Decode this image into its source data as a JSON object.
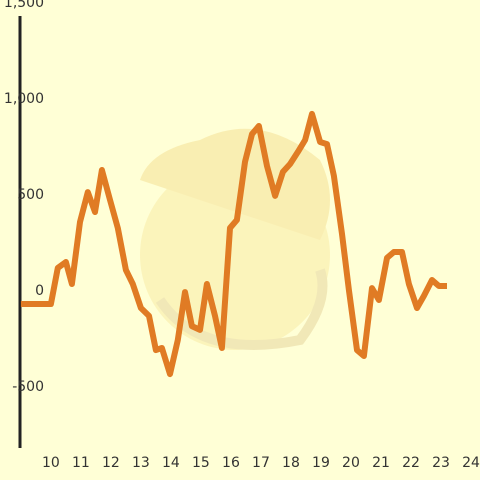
{
  "chart_data": {
    "type": "line",
    "x": [
      9,
      10,
      10.23,
      10.5,
      10.7,
      10.97,
      11.23,
      11.47,
      11.7,
      11.97,
      12.23,
      12.5,
      12.73,
      13,
      13.27,
      13.5,
      13.7,
      13.97,
      14.23,
      14.47,
      14.7,
      14.97,
      15.2,
      15.47,
      15.7,
      15.97,
      16.2,
      16.47,
      16.7,
      16.93,
      17.2,
      17.47,
      17.73,
      17.97,
      18.23,
      18.47,
      18.7,
      18.97,
      19.2,
      19.43,
      19.7,
      19.93,
      20.2,
      20.43,
      20.7,
      20.93,
      21.2,
      21.43,
      21.7,
      21.93,
      22.2,
      22.43,
      22.7,
      22.93,
      23.2
    ],
    "values": [
      0,
      0,
      188,
      219,
      104,
      427,
      583,
      479,
      698,
      542,
      396,
      177,
      104,
      -21,
      -62,
      -240,
      -229,
      -365,
      -188,
      62,
      -115,
      -135,
      104,
      -62,
      -229,
      396,
      438,
      740,
      885,
      927,
      719,
      563,
      688,
      729,
      792,
      854,
      990,
      844,
      833,
      667,
      365,
      73,
      -240,
      -271,
      83,
      21,
      240,
      271,
      271,
      104,
      -21,
      42,
      125,
      94,
      94
    ],
    "color": "#e07b24",
    "xlim": [
      8.97,
      24.3
    ],
    "xticks": [
      10,
      11,
      12,
      13,
      14,
      15,
      16,
      17,
      18,
      19,
      20,
      21,
      22,
      23,
      24
    ],
    "ylim": [
      -750,
      1500
    ],
    "yticks": [
      {
        "value": -500,
        "label": "-500"
      },
      0,
      500,
      {
        "value": 1000,
        "label": "1,000"
      },
      {
        "value": 1500,
        "label": "1,500"
      }
    ],
    "yminorticks": [
      -250,
      250,
      750,
      1250
    ],
    "grid": true
  }
}
